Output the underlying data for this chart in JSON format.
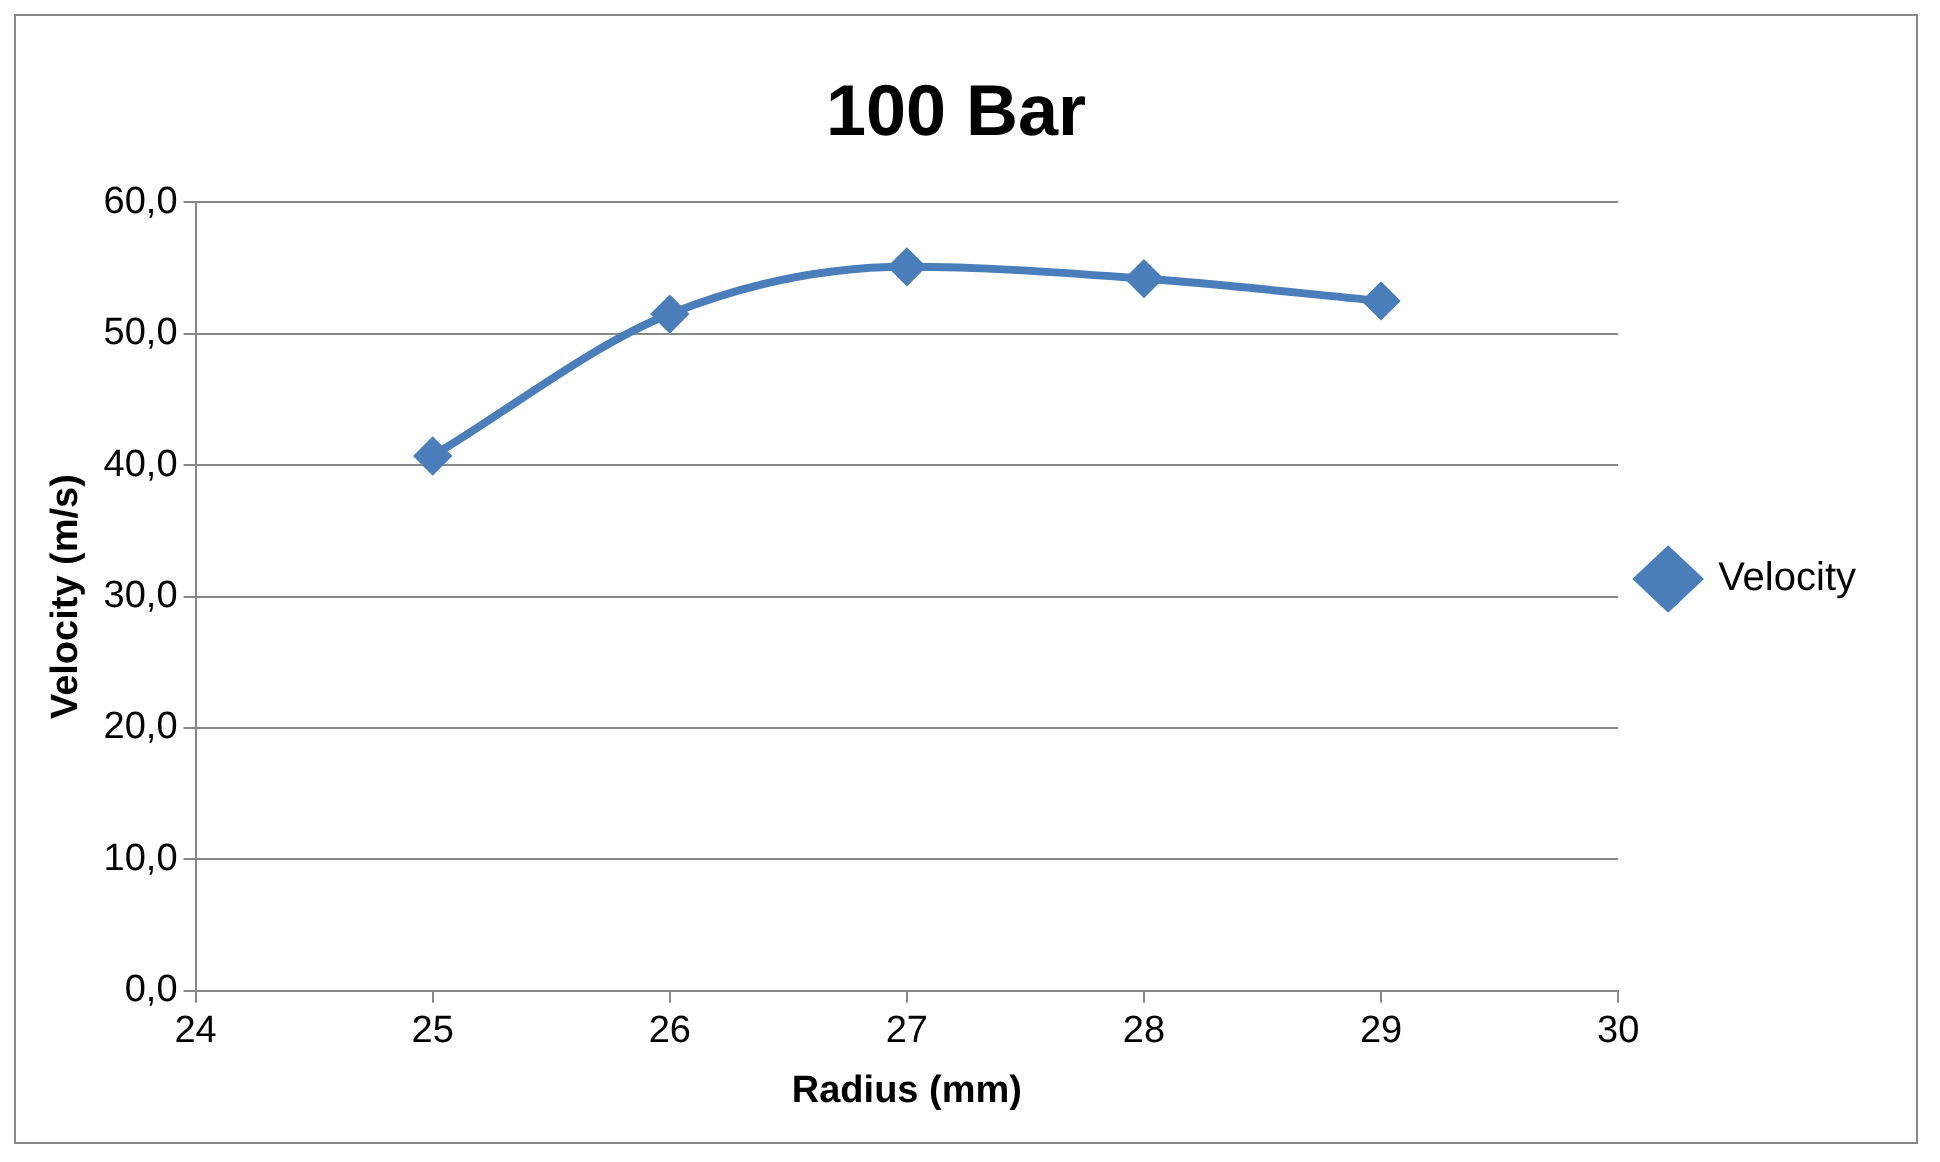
{
  "chart_data": {
    "type": "line",
    "title": "100 Bar",
    "xlabel": "Radius (mm)",
    "ylabel": "Velocity (m/s)",
    "x": [
      25,
      26,
      27,
      28,
      29
    ],
    "series": [
      {
        "name": "Velocity",
        "color": "#4a7ebb",
        "values": [
          40.7,
          51.5,
          55.1,
          54.2,
          52.5
        ]
      }
    ],
    "xlim": [
      24,
      30
    ],
    "xticks": [
      24,
      25,
      26,
      27,
      28,
      29,
      30
    ],
    "ylim": [
      0,
      60
    ],
    "yticks": [
      {
        "value": 0,
        "label": "0,0"
      },
      {
        "value": 10,
        "label": "10,0"
      },
      {
        "value": 20,
        "label": "20,0"
      },
      {
        "value": 30,
        "label": "30,0"
      },
      {
        "value": 40,
        "label": "40,0"
      },
      {
        "value": 50,
        "label": "50,0"
      },
      {
        "value": 60,
        "label": "60,0"
      }
    ],
    "grid": "y",
    "legend": "right",
    "marker": "diamond",
    "line_style": "solid"
  }
}
